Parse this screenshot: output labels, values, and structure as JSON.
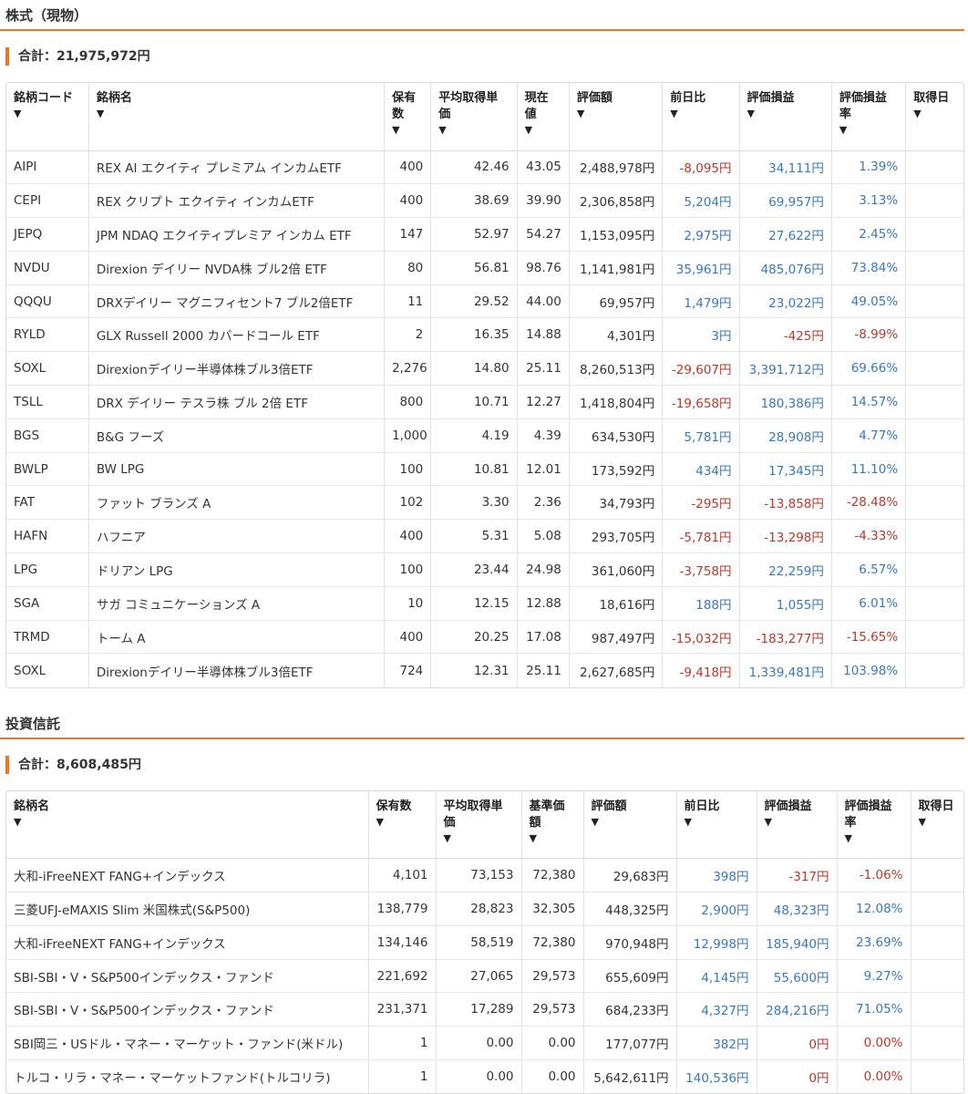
{
  "stocks": {
    "title": "株式（現物）",
    "total": "合計：21,975,972円",
    "headers": [
      "銘柄コード",
      "銘柄名",
      "保有数",
      "平均取得単価",
      "現在値",
      "評価額",
      "前日比",
      "評価損益",
      "評価損益率",
      "取得日"
    ],
    "sort_arrow": "▼",
    "rows": [
      {
        "code": "AIPI",
        "name": "REX AI エクイティ プレミアム インカムETF",
        "qty": "400",
        "avg": "42.46",
        "price": "43.05",
        "value": "2,488,978円",
        "day": "-8,095円",
        "day_sign": "neg",
        "pl": "34,111円",
        "pl_sign": "pos",
        "rate": "1.39%",
        "rate_sign": "pos",
        "date": ""
      },
      {
        "code": "CEPI",
        "name": "REX クリプト エクイティ インカムETF",
        "qty": "400",
        "avg": "38.69",
        "price": "39.90",
        "value": "2,306,858円",
        "day": "5,204円",
        "day_sign": "pos",
        "pl": "69,957円",
        "pl_sign": "pos",
        "rate": "3.13%",
        "rate_sign": "pos",
        "date": ""
      },
      {
        "code": "JEPQ",
        "name": "JPM NDAQ エクイティプレミア インカム ETF",
        "qty": "147",
        "avg": "52.97",
        "price": "54.27",
        "value": "1,153,095円",
        "day": "2,975円",
        "day_sign": "pos",
        "pl": "27,622円",
        "pl_sign": "pos",
        "rate": "2.45%",
        "rate_sign": "pos",
        "date": ""
      },
      {
        "code": "NVDU",
        "name": "Direxion デイリー NVDA株 ブル2倍 ETF",
        "qty": "80",
        "avg": "56.81",
        "price": "98.76",
        "value": "1,141,981円",
        "day": "35,961円",
        "day_sign": "pos",
        "pl": "485,076円",
        "pl_sign": "pos",
        "rate": "73.84%",
        "rate_sign": "pos",
        "date": ""
      },
      {
        "code": "QQQU",
        "name": "DRXデイリー マグニフィセント7 ブル2倍ETF",
        "qty": "11",
        "avg": "29.52",
        "price": "44.00",
        "value": "69,957円",
        "day": "1,479円",
        "day_sign": "pos",
        "pl": "23,022円",
        "pl_sign": "pos",
        "rate": "49.05%",
        "rate_sign": "pos",
        "date": ""
      },
      {
        "code": "RYLD",
        "name": "GLX Russell 2000 カバードコール ETF",
        "qty": "2",
        "avg": "16.35",
        "price": "14.88",
        "value": "4,301円",
        "day": "3円",
        "day_sign": "pos",
        "pl": "-425円",
        "pl_sign": "neg",
        "rate": "-8.99%",
        "rate_sign": "neg",
        "date": ""
      },
      {
        "code": "SOXL",
        "name": "Direxionデイリー半導体株ブル3倍ETF",
        "qty": "2,276",
        "avg": "14.80",
        "price": "25.11",
        "value": "8,260,513円",
        "day": "-29,607円",
        "day_sign": "neg",
        "pl": "3,391,712円",
        "pl_sign": "pos",
        "rate": "69.66%",
        "rate_sign": "pos",
        "date": ""
      },
      {
        "code": "TSLL",
        "name": "DRX デイリー テスラ株 ブル 2倍 ETF",
        "qty": "800",
        "avg": "10.71",
        "price": "12.27",
        "value": "1,418,804円",
        "day": "-19,658円",
        "day_sign": "neg",
        "pl": "180,386円",
        "pl_sign": "pos",
        "rate": "14.57%",
        "rate_sign": "pos",
        "date": ""
      },
      {
        "code": "BGS",
        "name": "B&G フーズ",
        "qty": "1,000",
        "avg": "4.19",
        "price": "4.39",
        "value": "634,530円",
        "day": "5,781円",
        "day_sign": "pos",
        "pl": "28,908円",
        "pl_sign": "pos",
        "rate": "4.77%",
        "rate_sign": "pos",
        "date": ""
      },
      {
        "code": "BWLP",
        "name": "BW LPG",
        "qty": "100",
        "avg": "10.81",
        "price": "12.01",
        "value": "173,592円",
        "day": "434円",
        "day_sign": "pos",
        "pl": "17,345円",
        "pl_sign": "pos",
        "rate": "11.10%",
        "rate_sign": "pos",
        "date": ""
      },
      {
        "code": "FAT",
        "name": "ファット ブランズ A",
        "qty": "102",
        "avg": "3.30",
        "price": "2.36",
        "value": "34,793円",
        "day": "-295円",
        "day_sign": "neg",
        "pl": "-13,858円",
        "pl_sign": "neg",
        "rate": "-28.48%",
        "rate_sign": "neg",
        "date": ""
      },
      {
        "code": "HAFN",
        "name": "ハフニア",
        "qty": "400",
        "avg": "5.31",
        "price": "5.08",
        "value": "293,705円",
        "day": "-5,781円",
        "day_sign": "neg",
        "pl": "-13,298円",
        "pl_sign": "neg",
        "rate": "-4.33%",
        "rate_sign": "neg",
        "date": ""
      },
      {
        "code": "LPG",
        "name": "ドリアン LPG",
        "qty": "100",
        "avg": "23.44",
        "price": "24.98",
        "value": "361,060円",
        "day": "-3,758円",
        "day_sign": "neg",
        "pl": "22,259円",
        "pl_sign": "pos",
        "rate": "6.57%",
        "rate_sign": "pos",
        "date": ""
      },
      {
        "code": "SGA",
        "name": "サガ コミュニケーションズ A",
        "qty": "10",
        "avg": "12.15",
        "price": "12.88",
        "value": "18,616円",
        "day": "188円",
        "day_sign": "pos",
        "pl": "1,055円",
        "pl_sign": "pos",
        "rate": "6.01%",
        "rate_sign": "pos",
        "date": ""
      },
      {
        "code": "TRMD",
        "name": "トーム A",
        "qty": "400",
        "avg": "20.25",
        "price": "17.08",
        "value": "987,497円",
        "day": "-15,032円",
        "day_sign": "neg",
        "pl": "-183,277円",
        "pl_sign": "neg",
        "rate": "-15.65%",
        "rate_sign": "neg",
        "date": ""
      },
      {
        "code": "SOXL",
        "name": "Direxionデイリー半導体株ブル3倍ETF",
        "qty": "724",
        "avg": "12.31",
        "price": "25.11",
        "value": "2,627,685円",
        "day": "-9,418円",
        "day_sign": "neg",
        "pl": "1,339,481円",
        "pl_sign": "pos",
        "rate": "103.98%",
        "rate_sign": "pos",
        "date": ""
      }
    ]
  },
  "funds": {
    "title": "投資信託",
    "total": "合計：8,608,485円",
    "headers": [
      "銘柄名",
      "保有数",
      "平均取得単価",
      "基準価額",
      "評価額",
      "前日比",
      "評価損益",
      "評価損益率",
      "取得日"
    ],
    "sort_arrow": "▼",
    "rows": [
      {
        "name": "大和-iFreeNEXT FANG+インデックス",
        "qty": "4,101",
        "avg": "73,153",
        "price": "72,380",
        "value": "29,683円",
        "day": "398円",
        "day_sign": "pos",
        "pl": "-317円",
        "pl_sign": "neg",
        "rate": "-1.06%",
        "rate_sign": "neg",
        "date": ""
      },
      {
        "name": "三菱UFJ-eMAXIS Slim 米国株式(S&P500)",
        "qty": "138,779",
        "avg": "28,823",
        "price": "32,305",
        "value": "448,325円",
        "day": "2,900円",
        "day_sign": "pos",
        "pl": "48,323円",
        "pl_sign": "pos",
        "rate": "12.08%",
        "rate_sign": "pos",
        "date": ""
      },
      {
        "name": "大和-iFreeNEXT FANG+インデックス",
        "qty": "134,146",
        "avg": "58,519",
        "price": "72,380",
        "value": "970,948円",
        "day": "12,998円",
        "day_sign": "pos",
        "pl": "185,940円",
        "pl_sign": "pos",
        "rate": "23.69%",
        "rate_sign": "pos",
        "date": ""
      },
      {
        "name": "SBI-SBI・V・S&P500インデックス・ファンド",
        "qty": "221,692",
        "avg": "27,065",
        "price": "29,573",
        "value": "655,609円",
        "day": "4,145円",
        "day_sign": "pos",
        "pl": "55,600円",
        "pl_sign": "pos",
        "rate": "9.27%",
        "rate_sign": "pos",
        "date": ""
      },
      {
        "name": "SBI-SBI・V・S&P500インデックス・ファンド",
        "qty": "231,371",
        "avg": "17,289",
        "price": "29,573",
        "value": "684,233円",
        "day": "4,327円",
        "day_sign": "pos",
        "pl": "284,216円",
        "pl_sign": "pos",
        "rate": "71.05%",
        "rate_sign": "pos",
        "date": ""
      },
      {
        "name": "SBI岡三・USドル・マネー・マーケット・ファンド(米ドル)",
        "qty": "1",
        "avg": "0.00",
        "price": "0.00",
        "value": "177,077円",
        "day": "382円",
        "day_sign": "pos",
        "pl": "0円",
        "pl_sign": "neg",
        "rate": "0.00%",
        "rate_sign": "neg",
        "date": ""
      },
      {
        "name": "トルコ・リラ・マネー・マーケットファンド(トルコリラ)",
        "qty": "1",
        "avg": "0.00",
        "price": "0.00",
        "value": "5,642,611円",
        "day": "140,536円",
        "day_sign": "pos",
        "pl": "0円",
        "pl_sign": "neg",
        "rate": "0.00%",
        "rate_sign": "neg",
        "date": ""
      }
    ]
  },
  "colors": {
    "accent": "#e07a2a",
    "positive": "#3a78b5",
    "negative": "#b23a2e"
  }
}
